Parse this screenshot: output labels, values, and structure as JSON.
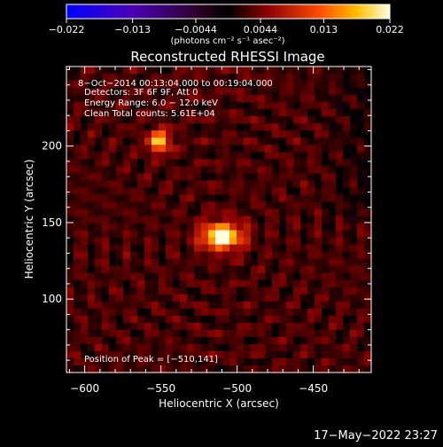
{
  "chart_data": {
    "type": "heatmap",
    "title": "Reconstructed RHESSI Image",
    "xlabel": "Heliocentric X (arcsec)",
    "ylabel": "Heliocentric Y (arcsec)",
    "xlim": [
      -612,
      -412
    ],
    "ylim": [
      52,
      252
    ],
    "xticks": [
      -600,
      -550,
      -500,
      -450
    ],
    "xtick_labels": [
      "−600",
      "−550",
      "−500",
      "−450"
    ],
    "yticks": [
      100,
      150,
      200
    ],
    "ytick_labels": [
      "100",
      "150",
      "200"
    ],
    "colorbar": {
      "range": [
        -0.022,
        0.022
      ],
      "ticks": [
        -0.022,
        -0.013,
        -0.0044,
        0.0044,
        0.013,
        0.022
      ],
      "tick_labels": [
        "−0.022",
        "−0.013",
        "−0.0044",
        "0.0044",
        "0.013",
        "0.022"
      ],
      "units_label": "(photons cm⁻² s⁻¹ asec⁻²)"
    },
    "annotations": [
      "8−Oct−2014 00:13:04.000 to 00:19:04.000",
      "Detectors: 3F 6F 9F, Att 0",
      "Energy Range: 6.0 − 12.0 keV",
      "Clean     Total counts: 5.61E+04"
    ],
    "peak_label": "Position of Peak = [−510,141]",
    "sources": [
      {
        "x": -510,
        "y": 141,
        "peak": 0.022
      },
      {
        "x": -551,
        "y": 203,
        "peak": 0.016
      }
    ]
  },
  "footer": {
    "timestamp": "17−May−2022 23:27"
  }
}
